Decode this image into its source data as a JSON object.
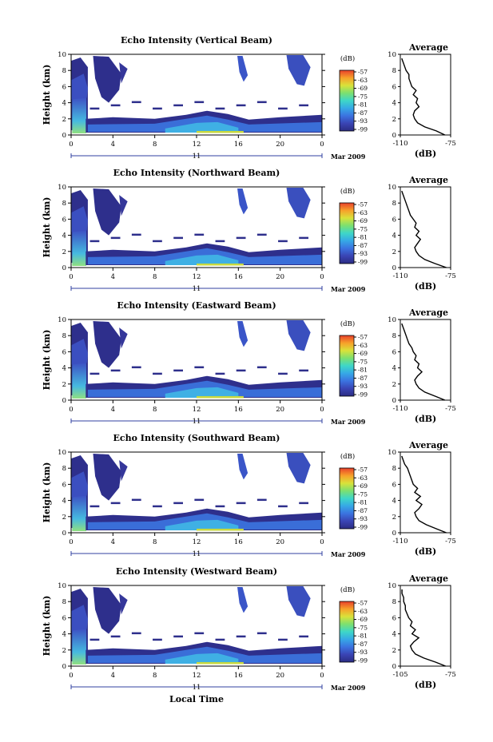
{
  "figure": {
    "xlabel": "Local Time",
    "day_label": "11",
    "date_label": "Mar 2009",
    "ylabel": "Height (km)",
    "cbar_unit": "(dB)",
    "avg_title": "Average",
    "avg_xlabel": "(dB)"
  },
  "colors": {
    "low_echo": "#2e2f8c",
    "mid_echo": "#3f7be0",
    "high_echo": "#9ad83c",
    "colormap": [
      "#2b2c83",
      "#3a44b4",
      "#3b73e0",
      "#36a8e6",
      "#3ed7c8",
      "#7ce070",
      "#d9e23a",
      "#f7a12a",
      "#e8402b"
    ]
  },
  "chart_data": [
    {
      "type": "heatmap",
      "title": "Echo Intensity (Vertical Beam)",
      "xlabel": "Local Time",
      "ylabel": "Height (km)",
      "x_ticks": [
        "0",
        "4",
        "8",
        "12",
        "16",
        "20",
        "0"
      ],
      "xlim": [
        0,
        24
      ],
      "y_ticks": [
        "0",
        "2",
        "4",
        "6",
        "8",
        "10"
      ],
      "ylim": [
        0,
        10
      ],
      "colorbar": {
        "unit": "(dB)",
        "ticks": [
          "-57",
          "-63",
          "-69",
          "-75",
          "-81",
          "-87",
          "-93",
          "-99"
        ]
      },
      "average_profile": {
        "title": "Average",
        "xlabel": "(dB)",
        "xlim": [
          -110,
          -75
        ],
        "x_ticks": [
          "-110",
          "-75"
        ],
        "y_ticks": [
          "0",
          "2",
          "4",
          "6",
          "8",
          "10"
        ],
        "height_km": [
          0,
          0.5,
          1,
          1.5,
          2,
          2.5,
          3,
          3.5,
          4,
          4.5,
          5,
          5.5,
          6,
          6.5,
          7,
          7.5,
          8,
          8.5,
          9,
          9.5
        ],
        "db": [
          -79,
          -85,
          -93,
          -98,
          -100,
          -101,
          -100,
          -97,
          -99,
          -98,
          -101,
          -99,
          -102,
          -103,
          -104,
          -104,
          -106,
          -107,
          -108,
          -109
        ]
      }
    },
    {
      "type": "heatmap",
      "title": "Echo Intensity (Northward Beam)",
      "xlabel": "Local Time",
      "ylabel": "Height (km)",
      "x_ticks": [
        "0",
        "4",
        "8",
        "12",
        "16",
        "20",
        "0"
      ],
      "xlim": [
        0,
        24
      ],
      "y_ticks": [
        "0",
        "2",
        "4",
        "6",
        "8",
        "10"
      ],
      "ylim": [
        0,
        10
      ],
      "colorbar": {
        "unit": "(dB)",
        "ticks": [
          "-57",
          "-63",
          "-69",
          "-75",
          "-81",
          "-87",
          "-93",
          "-99"
        ]
      },
      "average_profile": {
        "title": "Average",
        "xlabel": "(dB)",
        "xlim": [
          -110,
          -75
        ],
        "x_ticks": [
          "-110",
          "-75"
        ],
        "y_ticks": [
          "0",
          "2",
          "4",
          "6",
          "8",
          "10"
        ],
        "height_km": [
          0,
          0.5,
          1,
          1.5,
          2,
          2.5,
          3,
          3.5,
          4,
          4.5,
          5,
          5.5,
          6,
          6.5,
          7,
          7.5,
          8,
          8.5,
          9,
          9.5
        ],
        "db": [
          -78,
          -86,
          -93,
          -97,
          -99,
          -100,
          -98,
          -96,
          -99,
          -97,
          -100,
          -99,
          -101,
          -103,
          -104,
          -105,
          -106,
          -107,
          -108,
          -109
        ]
      }
    },
    {
      "type": "heatmap",
      "title": "Echo Intensity (Eastward Beam)",
      "xlabel": "Local Time",
      "ylabel": "Height (km)",
      "x_ticks": [
        "0",
        "4",
        "8",
        "12",
        "16",
        "20",
        "0"
      ],
      "xlim": [
        0,
        24
      ],
      "y_ticks": [
        "0",
        "2",
        "4",
        "6",
        "8",
        "10"
      ],
      "ylim": [
        0,
        10
      ],
      "colorbar": {
        "unit": "(dB)",
        "ticks": [
          "-57",
          "-63",
          "-69",
          "-75",
          "-81",
          "-87",
          "-93",
          "-99"
        ]
      },
      "average_profile": {
        "title": "Average",
        "xlabel": "(dB)",
        "xlim": [
          -110,
          -75
        ],
        "x_ticks": [
          "-110",
          "-75"
        ],
        "y_ticks": [
          "0",
          "2",
          "4",
          "6",
          "8",
          "10"
        ],
        "height_km": [
          0,
          0.5,
          1,
          1.5,
          2,
          2.5,
          3,
          3.5,
          4,
          4.5,
          5,
          5.5,
          6,
          6.5,
          7,
          7.5,
          8,
          8.5,
          9,
          9.5
        ],
        "db": [
          -79,
          -86,
          -93,
          -97,
          -99,
          -100,
          -98,
          -95,
          -98,
          -97,
          -100,
          -99,
          -101,
          -102,
          -104,
          -105,
          -106,
          -107,
          -108,
          -109
        ]
      }
    },
    {
      "type": "heatmap",
      "title": "Echo Intensity (Southward Beam)",
      "xlabel": "Local Time",
      "ylabel": "Height (km)",
      "x_ticks": [
        "0",
        "4",
        "8",
        "12",
        "16",
        "20",
        "0"
      ],
      "xlim": [
        0,
        24
      ],
      "y_ticks": [
        "0",
        "2",
        "4",
        "6",
        "8",
        "10"
      ],
      "ylim": [
        0,
        10
      ],
      "colorbar": {
        "unit": "(dB)",
        "ticks": [
          "-57",
          "-63",
          "-69",
          "-75",
          "-81",
          "-87",
          "-93",
          "-99"
        ]
      },
      "average_profile": {
        "title": "Average",
        "xlabel": "(dB)",
        "xlim": [
          -110,
          -75
        ],
        "x_ticks": [
          "-110",
          "-75"
        ],
        "y_ticks": [
          "0",
          "2",
          "4",
          "6",
          "8",
          "10"
        ],
        "height_km": [
          0,
          0.5,
          1,
          1.5,
          2,
          2.5,
          3,
          3.5,
          4,
          4.5,
          5,
          5.5,
          6,
          6.5,
          7,
          7.5,
          8,
          8.5,
          9,
          9.5
        ],
        "db": [
          -78,
          -85,
          -92,
          -97,
          -99,
          -100,
          -97,
          -95,
          -99,
          -96,
          -100,
          -98,
          -101,
          -102,
          -103,
          -104,
          -105,
          -107,
          -108,
          -109
        ]
      }
    },
    {
      "type": "heatmap",
      "title": "Echo Intensity (Westward Beam)",
      "xlabel": "Local Time",
      "ylabel": "Height (km)",
      "x_ticks": [
        "0",
        "4",
        "8",
        "12",
        "16",
        "20",
        "0"
      ],
      "xlim": [
        0,
        24
      ],
      "y_ticks": [
        "0",
        "2",
        "4",
        "6",
        "8",
        "10"
      ],
      "ylim": [
        0,
        10
      ],
      "colorbar": {
        "unit": "(dB)",
        "ticks": [
          "-57",
          "-63",
          "-69",
          "-75",
          "-81",
          "-87",
          "-93",
          "-99"
        ]
      },
      "average_profile": {
        "title": "Average",
        "xlabel": "(dB)",
        "xlim": [
          -105,
          -75
        ],
        "x_ticks": [
          "-105",
          "-75"
        ],
        "y_ticks": [
          "0",
          "2",
          "4",
          "6",
          "8",
          "10"
        ],
        "height_km": [
          0,
          0.5,
          1,
          1.5,
          2,
          2.5,
          3,
          3.5,
          4,
          4.5,
          5,
          5.5,
          6,
          6.5,
          7,
          7.5,
          8,
          8.5,
          9,
          9.5
        ],
        "db": [
          -78,
          -84,
          -91,
          -96,
          -98,
          -99,
          -97,
          -94,
          -98,
          -96,
          -99,
          -98,
          -100,
          -101,
          -102,
          -102,
          -103,
          -103,
          -104,
          -104
        ]
      }
    }
  ]
}
